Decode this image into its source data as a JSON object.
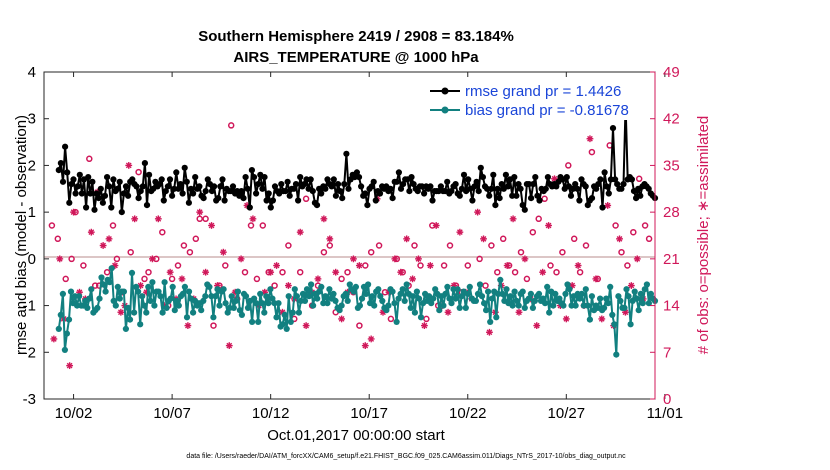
{
  "chart_data": {
    "type": "line",
    "title": "Southern Hemisphere 2419 / 2908 = 83.184%",
    "subtitle": "AIRS_TEMPERATURE @ 1000 hPa",
    "xlabel": "Oct.01,2017 00:00:00 start",
    "ylabel": "rmse and bias (model - observation)",
    "ylabel_right": "# of obs: o=possible; ∗=assimilated",
    "xlim": [
      0.5,
      31.5
    ],
    "ylim": [
      -3,
      4
    ],
    "ylim_right": [
      0,
      49
    ],
    "x_tick_labels": [
      "10/02",
      "10/07",
      "10/12",
      "10/17",
      "10/22",
      "10/27",
      "11/01"
    ],
    "y_tick_labels": [
      "-3",
      "-2",
      "-1",
      "0",
      "1",
      "2",
      "3",
      "4"
    ],
    "y_right_tick_labels": [
      "0",
      "7",
      "14",
      "21",
      "28",
      "35",
      "42",
      "49"
    ],
    "footer": "data file: /Users/raeder/DAI/ATM_forcXX/CAM6_setup/f.e21.FHIST_BGC.f09_025.CAM6assim.011/Diags_NTrS_2017-10/obs_diag_output.nc",
    "legend": [
      {
        "label": "rmse grand pr = 1.4426",
        "color": "#000000"
      },
      {
        "label": "bias grand pr = -0.81678",
        "color": "#128080"
      }
    ],
    "series": [
      {
        "name": "rmse",
        "axis": "left",
        "color": "#000000",
        "values": [
          1.9,
          2.05,
          1.65,
          2.4,
          1.85,
          1.2,
          1.6,
          1.7,
          1.4,
          1.55,
          1.8,
          1.4,
          1.7,
          1.1,
          1.75,
          1.4,
          1.65,
          1.05,
          1.4,
          1.3,
          1.5,
          1.2,
          1.35,
          1.75,
          1.55,
          1.1,
          1.7,
          1.45,
          1.5,
          1.65,
          1.0,
          1.4,
          1.55,
          1.35,
          1.65,
          1.7,
          1.6,
          1.55,
          1.3,
          1.45,
          1.55,
          2.05,
          1.15,
          1.8,
          1.45,
          1.5,
          1.65,
          1.55,
          1.6,
          1.7,
          1.25,
          1.45,
          1.55,
          1.7,
          1.35,
          1.5,
          1.85,
          1.5,
          1.6,
          1.4,
          1.95,
          1.65,
          1.2,
          1.5,
          1.4,
          1.75,
          1.5,
          1.55,
          1.35,
          1.3,
          1.45,
          1.7,
          1.6,
          1.45,
          1.55,
          1.25,
          1.3,
          1.55,
          1.7,
          1.25,
          1.5,
          1.45,
          1.45,
          1.55,
          1.4,
          1.45,
          1.35,
          1.45,
          1.3,
          1.75,
          1.5,
          1.1,
          1.9,
          1.75,
          1.4,
          1.6,
          1.8,
          1.5,
          1.75,
          1.25,
          1.4,
          1.1,
          1.25,
          1.55,
          1.45,
          1.4,
          1.6,
          1.45,
          1.45,
          1.65,
          1.35,
          1.5,
          1.5,
          1.6,
          1.25,
          1.75,
          1.55,
          1.6,
          1.7,
          1.5,
          1.7,
          1.45,
          1.2,
          1.15,
          1.5,
          1.4,
          1.55,
          1.5,
          1.7,
          1.6,
          1.55,
          1.7,
          1.35,
          1.6,
          1.45,
          1.3,
          1.6,
          2.25,
          1.5,
          1.7,
          1.8,
          1.75,
          1.85,
          1.75,
          1.55,
          1.35,
          1.4,
          1.15,
          1.5,
          1.55,
          1.65,
          1.25,
          1.45,
          1.4,
          1.55,
          1.5,
          1.55,
          1.45,
          1.5,
          1.3,
          1.65,
          1.65,
          1.85,
          1.5,
          1.6,
          1.7,
          1.7,
          1.45,
          1.75,
          1.6,
          1.5,
          1.45,
          1.55,
          1.55,
          1.4,
          1.55,
          1.5,
          1.55,
          1.25,
          1.45,
          1.45,
          1.45,
          1.55,
          1.45,
          1.45,
          1.65,
          1.4,
          1.45,
          1.55,
          1.6,
          1.4,
          1.35,
          1.5,
          1.8,
          1.45,
          1.7,
          1.5,
          1.25,
          1.55,
          1.65,
          1.45,
          1.95,
          1.75,
          1.55,
          1.5,
          1.35,
          1.5,
          1.8,
          1.15,
          1.5,
          1.3,
          1.6,
          1.5,
          1.8,
          1.55,
          1.7,
          1.35,
          1.75,
          1.35,
          1.6,
          1.5,
          1.15,
          1.05,
          1.6,
          1.6,
          1.3,
          1.6,
          1.75,
          1.35,
          1.25,
          1.5,
          1.45,
          1.5,
          1.75,
          1.6,
          1.55,
          1.6,
          1.55,
          1.65,
          1.75,
          1.7,
          1.5,
          1.75,
          1.55,
          1.35,
          1.5,
          1.6,
          1.5,
          1.25,
          1.7,
          1.6,
          1.55,
          1.15,
          1.25,
          1.3,
          1.55,
          1.5,
          1.6,
          1.7,
          1.1,
          1.85,
          1.55,
          1.4,
          1.7,
          2.8,
          1.7,
          1.6,
          1.5,
          1.5,
          1.6,
          3.3,
          1.7,
          1.75,
          1.7,
          1.45,
          1.3,
          1.5,
          1.35,
          1.55,
          1.6,
          1.55,
          1.5,
          1.4,
          1.35,
          1.3
        ]
      },
      {
        "name": "bias",
        "axis": "left",
        "color": "#128080",
        "values": [
          -1.5,
          -1.2,
          -0.75,
          -1.95,
          -1.6,
          -1.3,
          -0.7,
          -0.95,
          -0.8,
          -1.0,
          -0.8,
          -1.0,
          -1.0,
          -0.9,
          -1.05,
          -0.85,
          -0.65,
          -1.15,
          -1.1,
          -1.05,
          -0.85,
          -0.4,
          -0.55,
          -0.7,
          -0.45,
          -0.5,
          -0.2,
          -0.9,
          -1.0,
          -0.6,
          -0.85,
          -0.7,
          -0.7,
          -1.5,
          -1.05,
          -1.3,
          -0.3,
          -1.15,
          -0.6,
          -0.7,
          -1.4,
          -0.8,
          -1.0,
          -1.15,
          -0.6,
          -0.9,
          -0.5,
          -1.0,
          -0.7,
          -0.7,
          -0.8,
          -1.15,
          -0.5,
          -1.05,
          -0.9,
          -0.85,
          -0.6,
          -1.1,
          -0.9,
          -1.0,
          -0.8,
          -0.75,
          -0.6,
          -1.25,
          -0.7,
          -0.85,
          -1.15,
          -0.9,
          -1.0,
          -0.95,
          -1.1,
          -0.9,
          -0.8,
          -0.55,
          -0.6,
          -0.8,
          -1.25,
          -0.8,
          -0.65,
          -1.0,
          -0.7,
          -0.65,
          -0.95,
          -1.15,
          -1.05,
          -0.8,
          -1.05,
          -0.9,
          -0.7,
          -1.1,
          -1.2,
          -0.75,
          -0.8,
          -1.05,
          -0.9,
          -1.35,
          -0.85,
          -0.95,
          -1.35,
          -0.75,
          -0.95,
          -1.15,
          -0.8,
          -0.95,
          -0.65,
          -0.85,
          -0.95,
          -1.25,
          -0.95,
          -1.45,
          -1.4,
          -1.2,
          -1.5,
          -0.8,
          -1.35,
          -1.15,
          -0.65,
          -0.8,
          -1.15,
          -0.9,
          -0.75,
          -0.9,
          -0.65,
          -0.8,
          -0.55,
          -1.0,
          -0.75,
          -0.85,
          -0.7,
          -0.6,
          -0.95,
          -0.8,
          -0.95,
          -0.65,
          -0.85,
          -0.75,
          -0.9,
          -1.05,
          -1.1,
          -1.0,
          -0.8,
          -0.75,
          -0.9,
          -0.55,
          -0.65,
          -0.7,
          -0.6,
          -1.05,
          -1.0,
          -0.85,
          -0.6,
          -0.75,
          -0.55,
          -0.95,
          -0.8,
          -1.0,
          -0.7,
          -0.65,
          -0.8,
          -0.9,
          -1.05,
          -1.1,
          -1.0,
          -0.65,
          -0.7,
          -0.95,
          -1.35,
          -0.85,
          -0.75,
          -0.65,
          -0.9,
          -0.55,
          -0.75,
          -1.05,
          -0.8,
          -1.15,
          -0.7,
          -0.85,
          -1.25,
          -0.95,
          -0.75,
          -0.9,
          -0.8,
          -0.95,
          -0.85,
          -0.65,
          -0.75,
          -1.1,
          -0.8,
          -1.0,
          -0.75,
          -0.6,
          -0.85,
          -0.95,
          -0.65,
          -0.85,
          -0.65,
          -1.05,
          -0.8,
          -0.7,
          -1.05,
          -0.75,
          -0.6,
          -0.85,
          -0.9,
          -0.9,
          -0.75,
          -0.55,
          -0.8,
          -0.95,
          -1.1,
          -0.7,
          -1.35,
          -0.85,
          -0.7,
          -1.25,
          -0.75,
          -0.45,
          -0.75,
          -0.9,
          -0.65,
          -0.95,
          -0.8,
          -1.0,
          -0.7,
          -0.9,
          -1.0,
          -0.75,
          -0.7,
          -1.05,
          -0.9,
          -0.85,
          -0.75,
          -1.05,
          -0.9,
          -0.8,
          -0.75,
          -0.9,
          -0.85,
          -0.95,
          -0.6,
          -1.15,
          -0.7,
          -1.0,
          -0.75,
          -0.9,
          -0.85,
          -0.95,
          -1.0,
          -0.75,
          -0.55,
          -0.65,
          -1.0,
          -0.8,
          -1.0,
          -0.75,
          -0.85,
          -0.75,
          -1.0,
          -0.65,
          -1.0,
          -1.3,
          -0.8,
          -1.1,
          -1.0,
          -1.05,
          -0.85,
          -1.1,
          -1.05,
          -0.85,
          -0.95,
          -0.6,
          -1.2,
          -1.4,
          -2.05,
          -0.8,
          -0.9,
          -1.05,
          -1.05,
          -0.65,
          -0.8,
          -1.4,
          -0.9,
          -0.7,
          -0.85,
          -1.1,
          -0.75,
          -0.95,
          -0.65,
          -0.55,
          -0.95,
          -0.75,
          -0.85,
          -0.9
        ]
      },
      {
        "name": "possible",
        "axis": "right",
        "marker": "o",
        "color": "#d0185a",
        "x": [
          0.9,
          1.2,
          1.6,
          1.9,
          2.1,
          2.5,
          2.8,
          3.1,
          3.3,
          3.7,
          4.0,
          4.2,
          4.5,
          4.9,
          5.3,
          5.6,
          5.8,
          6.2,
          6.5,
          6.8,
          7.0,
          7.3,
          7.6,
          7.9,
          8.2,
          8.4,
          8.7,
          9.1,
          9.4,
          9.7,
          10.0,
          10.3,
          10.7,
          11.0,
          11.3,
          11.6,
          11.9,
          12.2,
          12.6,
          12.9,
          13.2,
          13.5,
          13.8,
          14.1,
          14.4,
          14.7,
          15.0,
          15.3,
          15.6,
          15.9,
          16.2,
          16.5,
          16.8,
          17.1,
          17.5,
          17.8,
          18.1,
          18.4,
          18.7,
          19.0,
          19.3,
          19.6,
          19.9,
          20.2,
          20.5,
          20.8,
          21.1,
          21.4,
          21.7,
          22.0,
          22.3,
          22.6,
          22.9,
          23.2,
          23.5,
          23.8,
          24.1,
          24.4,
          24.7,
          25.0,
          25.3,
          25.6,
          25.9,
          26.2,
          26.5,
          26.8,
          27.1,
          27.4,
          27.7,
          28.0,
          28.3,
          28.6,
          28.9,
          29.2,
          29.5,
          29.8,
          30.1,
          30.4,
          30.7,
          31.0,
          31.2
        ],
        "values": [
          26,
          24,
          18,
          21,
          28,
          20,
          36,
          17,
          17,
          19,
          26,
          21,
          16,
          22,
          34,
          18,
          19,
          21,
          25,
          14,
          18,
          20,
          23,
          22,
          24,
          27,
          27,
          11,
          17,
          20,
          41,
          15,
          19,
          26,
          18,
          26,
          19,
          17,
          19,
          23,
          12,
          19,
          30,
          14,
          17,
          22,
          23,
          13,
          18,
          19,
          16,
          11,
          20,
          22,
          23,
          16,
          12,
          21,
          19,
          17,
          23,
          20,
          12,
          26,
          14,
          20,
          23,
          17,
          16,
          20,
          43,
          21,
          17,
          23,
          19,
          24,
          20,
          19,
          22,
          18,
          25,
          27,
          30,
          20,
          19,
          22,
          35,
          24,
          19,
          23,
          37,
          18,
          45,
          38,
          26,
          22,
          20,
          25,
          33,
          26,
          24
        ]
      },
      {
        "name": "assimilated",
        "axis": "right",
        "marker": "*",
        "color": "#d0185a",
        "x": [
          1.0,
          1.3,
          1.5,
          1.8,
          2.0,
          2.3,
          2.6,
          2.9,
          3.2,
          3.5,
          3.8,
          4.1,
          4.4,
          4.6,
          4.8,
          5.1,
          5.4,
          5.7,
          6.0,
          6.3,
          6.6,
          6.9,
          7.2,
          7.5,
          7.8,
          8.1,
          8.4,
          8.7,
          9.0,
          9.3,
          9.6,
          9.9,
          10.2,
          10.5,
          10.8,
          11.1,
          11.4,
          11.7,
          12.0,
          12.3,
          12.6,
          12.9,
          13.2,
          13.5,
          13.8,
          14.1,
          14.4,
          14.7,
          15.0,
          15.3,
          15.6,
          15.9,
          16.2,
          16.5,
          16.8,
          17.1,
          17.4,
          17.7,
          18.0,
          18.3,
          18.6,
          18.9,
          19.2,
          19.5,
          19.8,
          20.1,
          20.4,
          20.7,
          21.0,
          21.3,
          21.6,
          21.9,
          22.2,
          22.5,
          22.8,
          23.1,
          23.4,
          23.7,
          24.0,
          24.3,
          24.6,
          24.9,
          25.2,
          25.5,
          25.8,
          26.1,
          26.4,
          26.7,
          27.0,
          27.3,
          27.6,
          27.9,
          28.2,
          28.5,
          28.8,
          29.1,
          29.4,
          29.7,
          30.0,
          30.3,
          30.6,
          30.9
        ],
        "values": [
          9,
          21,
          12,
          5,
          28,
          16,
          15,
          25,
          31,
          23,
          24,
          20,
          13,
          14,
          35,
          27,
          17,
          16,
          21,
          27,
          14,
          19,
          15,
          18,
          11,
          15,
          28,
          19,
          26,
          17,
          22,
          8,
          16,
          21,
          29,
          27,
          14,
          16,
          19,
          20,
          13,
          17,
          15,
          25,
          11,
          16,
          18,
          27,
          24,
          19,
          12,
          16,
          21,
          20,
          8,
          9,
          30,
          13,
          16,
          21,
          19,
          24,
          18,
          21,
          11,
          20,
          26,
          14,
          13,
          17,
          25,
          16,
          15,
          28,
          24,
          10,
          13,
          17,
          20,
          27,
          13,
          21,
          15,
          11,
          19,
          26,
          33,
          14,
          12,
          17,
          20,
          14,
          39,
          18,
          12,
          29,
          11,
          24,
          13,
          17,
          21,
          15
        ]
      }
    ]
  }
}
